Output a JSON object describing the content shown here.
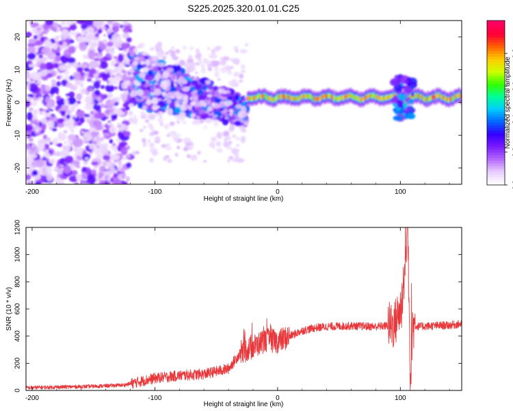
{
  "chart_data": [
    {
      "type": "heatmap",
      "title": "S225.2025.320.01.01.C25",
      "xlabel": "Height of straight line (km)",
      "ylabel": "Frequency (Hz)",
      "xlim": [
        -205,
        150
      ],
      "ylim": [
        -25,
        25
      ],
      "xticks": [
        -200,
        -100,
        0,
        100
      ],
      "yticks": [
        -20,
        -10,
        0,
        10,
        20
      ],
      "colorbar": {
        "label": "Normalized spectral amplitude",
        "range": [
          0.0,
          1.0
        ],
        "ticks": [
          "0.0",
          "0.2",
          "0.4",
          "0.6",
          "0.8"
        ],
        "tick_values": [
          0.0,
          0.2,
          0.4,
          0.6,
          0.8
        ],
        "colors": [
          "#ffffff",
          "#e6ccff",
          "#b366ff",
          "#7a1aff",
          "#3300ff",
          "#0066ff",
          "#00ccff",
          "#00ff99",
          "#33ff00",
          "#ccff00",
          "#ffcc00",
          "#ff6600",
          "#ff0033",
          "#ff0066"
        ]
      },
      "regions": [
        {
          "name": "scattered noise",
          "x": [
            -205,
            -120
          ],
          "y": [
            -25,
            25
          ],
          "amplitude": [
            0.05,
            0.3
          ]
        },
        {
          "name": "drifting blobs",
          "x": [
            -120,
            -25
          ],
          "y_center_start": 8,
          "y_center_end": -3,
          "amplitude": [
            0.1,
            0.45
          ]
        },
        {
          "name": "steady signal band",
          "x": [
            -25,
            150
          ],
          "y_center": 1.5,
          "amplitude": [
            0.4,
            1.0
          ]
        },
        {
          "name": "disturbance",
          "x": [
            95,
            110
          ],
          "y": [
            -5,
            8
          ],
          "amplitude": [
            0.2,
            0.5
          ]
        }
      ]
    },
    {
      "type": "line",
      "xlabel": "Height of straight line (km)",
      "ylabel": "SNR (10 * v/v)",
      "xlim": [
        -205,
        150
      ],
      "ylim": [
        0,
        1200
      ],
      "xticks": [
        -200,
        -100,
        0,
        100
      ],
      "yticks": [
        0,
        200,
        400,
        600,
        800,
        1000,
        1200
      ],
      "series": [
        {
          "name": "SNR",
          "color": "#e8383b",
          "x": [
            -205,
            -150,
            -125,
            -110,
            -100,
            -80,
            -60,
            -40,
            -30,
            -20,
            -10,
            0,
            10,
            20,
            30,
            40,
            60,
            80,
            95,
            100,
            104,
            106,
            108,
            110,
            115,
            125,
            140,
            150
          ],
          "y": [
            20,
            30,
            40,
            70,
            90,
            110,
            120,
            160,
            280,
            320,
            370,
            360,
            400,
            440,
            460,
            470,
            475,
            470,
            480,
            600,
            900,
            1200,
            150,
            480,
            470,
            475,
            480,
            490
          ]
        }
      ]
    }
  ]
}
